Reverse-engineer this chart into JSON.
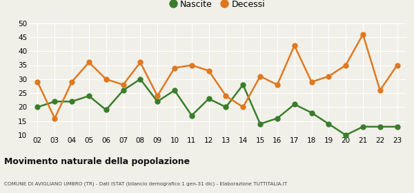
{
  "years": [
    "02",
    "03",
    "04",
    "05",
    "06",
    "07",
    "08",
    "09",
    "10",
    "11",
    "12",
    "13",
    "14",
    "15",
    "16",
    "17",
    "18",
    "19",
    "20",
    "21",
    "22",
    "23"
  ],
  "nascite": [
    20,
    22,
    22,
    24,
    19,
    26,
    30,
    22,
    26,
    17,
    23,
    20,
    28,
    14,
    16,
    21,
    18,
    14,
    10,
    13,
    13,
    13
  ],
  "decessi": [
    29,
    16,
    29,
    36,
    30,
    28,
    36,
    24,
    34,
    35,
    33,
    24,
    20,
    31,
    28,
    42,
    29,
    31,
    35,
    46,
    26,
    35
  ],
  "nascite_color": "#3a7d2c",
  "decessi_color": "#e07820",
  "background_color": "#f0f0e8",
  "grid_color": "#ffffff",
  "ylim": [
    10,
    50
  ],
  "yticks": [
    10,
    15,
    20,
    25,
    30,
    35,
    40,
    45,
    50
  ],
  "title": "Movimento naturale della popolazione",
  "subtitle": "COMUNE DI AVIGLIANO UMBRO (TR) - Dati ISTAT (bilancio demografico 1 gen-31 dic) - Elaborazione TUTTITALIA.IT",
  "legend_nascite": "Nascite",
  "legend_decessi": "Decessi",
  "marker_size": 5,
  "line_width": 1.8
}
